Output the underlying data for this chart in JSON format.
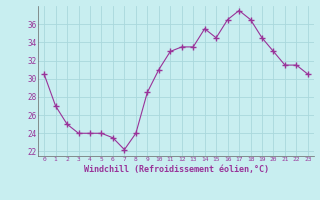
{
  "hours": [
    0,
    1,
    2,
    3,
    4,
    5,
    6,
    7,
    8,
    9,
    10,
    11,
    12,
    13,
    14,
    15,
    16,
    17,
    18,
    19,
    20,
    21,
    22,
    23
  ],
  "values": [
    30.5,
    27.0,
    25.0,
    24.0,
    24.0,
    24.0,
    23.5,
    22.2,
    24.0,
    28.5,
    31.0,
    33.0,
    33.5,
    33.5,
    35.5,
    34.5,
    36.5,
    37.5,
    36.5,
    34.5,
    33.0,
    31.5,
    31.5,
    30.5
  ],
  "xlabel": "Windchill (Refroidissement éolien,°C)",
  "bg_color": "#c8eef0",
  "line_color": "#993399",
  "marker_color": "#993399",
  "grid_color": "#aad8dc",
  "tick_label_color": "#993399",
  "axis_label_color": "#993399",
  "ylim": [
    21.5,
    38.0
  ],
  "yticks": [
    22,
    24,
    26,
    28,
    30,
    32,
    34,
    36
  ],
  "figsize": [
    3.2,
    2.0
  ],
  "dpi": 100
}
